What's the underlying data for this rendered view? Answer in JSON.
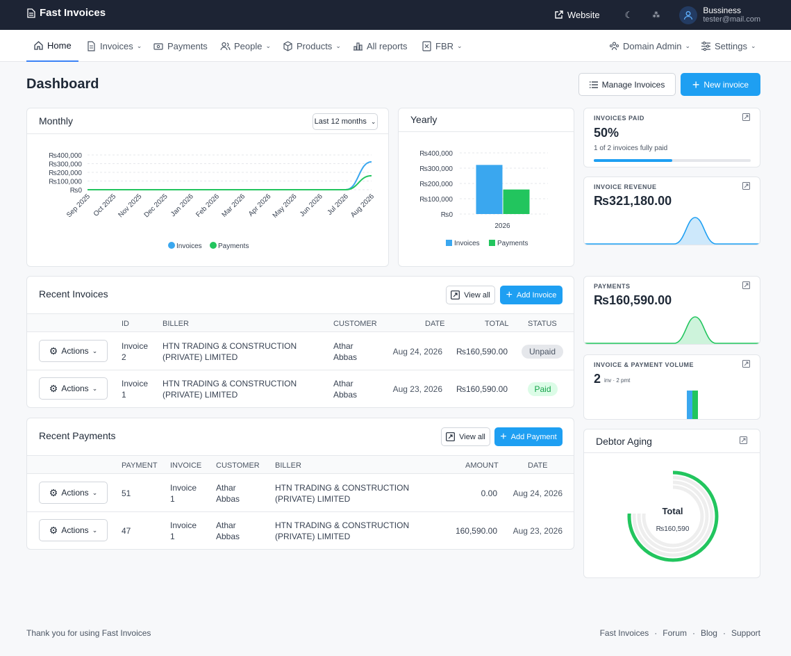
{
  "app": {
    "title": "Fast Invoices"
  },
  "topbar": {
    "website": "Website",
    "user_name": "Bussiness",
    "user_email": "tester@mail.com"
  },
  "nav": {
    "home": "Home",
    "invoices": "Invoices",
    "payments": "Payments",
    "people": "People",
    "products": "Products",
    "all_reports": "All reports",
    "fbr": "FBR",
    "domain_admin": "Domain Admin",
    "settings": "Settings"
  },
  "page": {
    "title": "Dashboard",
    "manage_invoices": "Manage Invoices",
    "new_invoice": "New invoice"
  },
  "monthly": {
    "title": "Monthly",
    "range": "Last 12 months"
  },
  "yearly": {
    "title": "Yearly"
  },
  "kpis": {
    "invoices_paid": {
      "label": "INVOICES PAID",
      "value": "50%",
      "sub": "1 of 2 invoices fully paid",
      "progress": 0.5
    },
    "invoice_revenue": {
      "label": "INVOICE REVENUE",
      "value": "₨321,180.00"
    },
    "payments": {
      "label": "PAYMENTS",
      "value": "₨160,590.00"
    },
    "volume": {
      "label": "INVOICE & PAYMENT VOLUME",
      "value": "2",
      "sub": "inv · 2 pmt"
    }
  },
  "debtor": {
    "title": "Debtor Aging",
    "center_title": "Total",
    "center_value": "₨160,590"
  },
  "recent_invoices": {
    "title": "Recent Invoices",
    "view_all": "View all",
    "add": "Add Invoice",
    "headers": [
      "ID",
      "BILLER",
      "CUSTOMER",
      "DATE",
      "TOTAL",
      "STATUS"
    ],
    "rows": [
      {
        "actions": "Actions",
        "id_1": "Invoice",
        "id_2": "2",
        "biller_1": "HTN TRADING & CONSTRUCTION",
        "biller_2": "(PRIVATE) LIMITED",
        "customer_1": "Athar",
        "customer_2": "Abbas",
        "date": "Aug 24, 2026",
        "total": "₨160,590.00",
        "status": "Unpaid"
      },
      {
        "actions": "Actions",
        "id_1": "Invoice",
        "id_2": "1",
        "biller_1": "HTN TRADING & CONSTRUCTION",
        "biller_2": "(PRIVATE) LIMITED",
        "customer_1": "Athar",
        "customer_2": "Abbas",
        "date": "Aug 23, 2026",
        "total": "₨160,590.00",
        "status": "Paid"
      }
    ]
  },
  "recent_payments": {
    "title": "Recent Payments",
    "view_all": "View all",
    "add": "Add Payment",
    "headers": [
      "PAYMENT",
      "INVOICE",
      "CUSTOMER",
      "BILLER",
      "AMOUNT",
      "DATE"
    ],
    "rows": [
      {
        "actions": "Actions",
        "payment": "51",
        "invoice_1": "Invoice",
        "invoice_2": "1",
        "customer_1": "Athar",
        "customer_2": "Abbas",
        "biller_1": "HTN TRADING & CONSTRUCTION",
        "biller_2": "(PRIVATE) LIMITED",
        "amount": "0.00",
        "date": "Aug 24, 2026"
      },
      {
        "actions": "Actions",
        "payment": "47",
        "invoice_1": "Invoice",
        "invoice_2": "1",
        "customer_1": "Athar",
        "customer_2": "Abbas",
        "biller_1": "HTN TRADING & CONSTRUCTION",
        "biller_2": "(PRIVATE) LIMITED",
        "amount": "160,590.00",
        "date": "Aug 23, 2026"
      }
    ]
  },
  "footer": {
    "thanks": "Thank you for using Fast Invoices",
    "links": [
      "Fast Invoices",
      "Forum",
      "Blog",
      "Support"
    ]
  },
  "colors": {
    "invoices": "#3aa7ef",
    "payments": "#22c55e",
    "accent": "#1e9ff2",
    "topbar": "#1d2434"
  },
  "chart_data": [
    {
      "type": "line",
      "title": "Monthly",
      "x": [
        "Sep 2025",
        "Oct 2025",
        "Nov 2025",
        "Dec 2025",
        "Jan 2026",
        "Feb 2026",
        "Mar 2026",
        "Apr 2026",
        "May 2026",
        "Jun 2026",
        "Jul 2026",
        "Aug 2026"
      ],
      "y_ticks": [
        "₨400,000",
        "₨300,000",
        "₨200,000",
        "₨100,000",
        "₨0"
      ],
      "ylim": [
        0,
        400000
      ],
      "series": [
        {
          "name": "Invoices",
          "values": [
            0,
            0,
            0,
            0,
            0,
            0,
            0,
            0,
            0,
            0,
            0,
            321180
          ]
        },
        {
          "name": "Payments",
          "values": [
            0,
            0,
            0,
            0,
            0,
            0,
            0,
            0,
            0,
            0,
            0,
            160590
          ]
        }
      ],
      "legend": "bottom"
    },
    {
      "type": "bar",
      "title": "Yearly",
      "categories": [
        "2026"
      ],
      "y_ticks": [
        "₨400,000",
        "₨300,000",
        "₨200,000",
        "₨100,000",
        "₨0"
      ],
      "ylim": [
        0,
        400000
      ],
      "series": [
        {
          "name": "Invoices",
          "values": [
            321180
          ]
        },
        {
          "name": "Payments",
          "values": [
            160590
          ]
        }
      ],
      "legend": "bottom"
    }
  ]
}
